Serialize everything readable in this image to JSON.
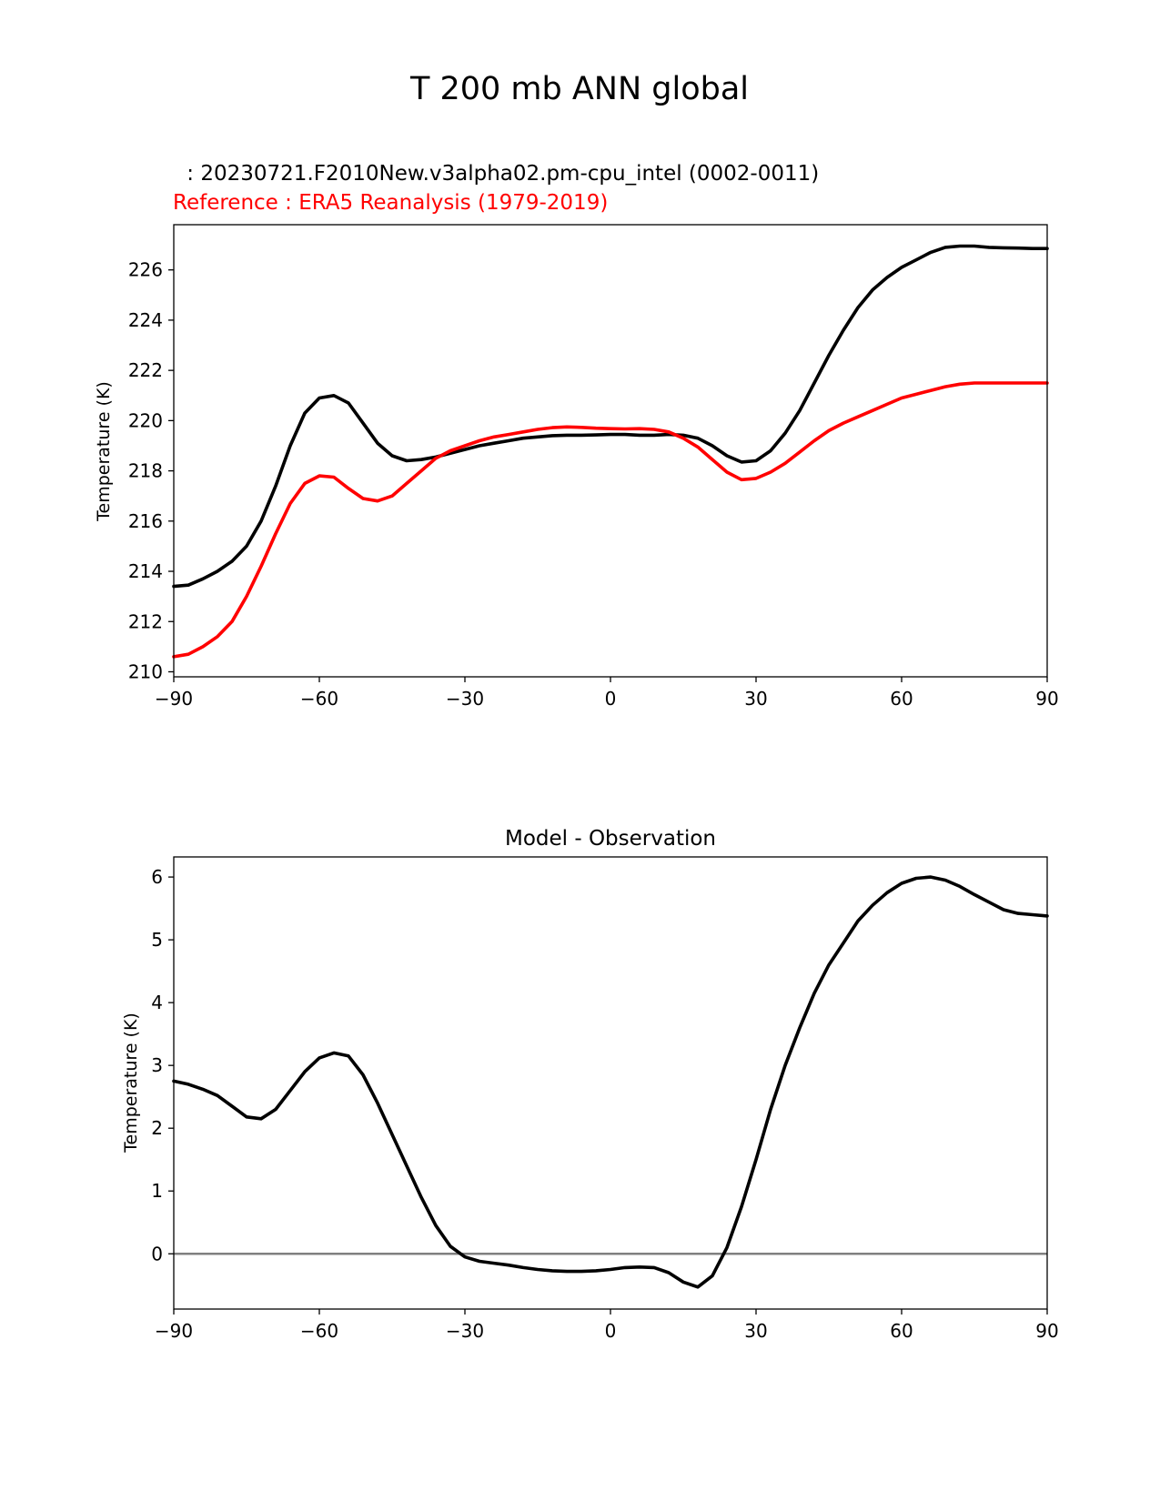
{
  "suptitle": "T 200 mb ANN global",
  "colors": {
    "test": "#000000",
    "reference": "#ff0000",
    "zero_line": "#808080"
  },
  "chart_data": [
    {
      "type": "line",
      "test_label": " : 20230721.F2010New.v3alpha02.pm-cpu_intel (0002-0011)",
      "ref_label": "Reference : ERA5 Reanalysis (1979-2019)",
      "xlabel": "",
      "ylabel": "Temperature (K)",
      "xlim": [
        -90,
        90
      ],
      "ylim": [
        209.8,
        227.8
      ],
      "xticks": [
        -90,
        -60,
        -30,
        0,
        30,
        60,
        90
      ],
      "xtick_labels": [
        "−90",
        "−60",
        "−30",
        "0",
        "30",
        "60",
        "90"
      ],
      "yticks": [
        210,
        212,
        214,
        216,
        218,
        220,
        222,
        224,
        226
      ],
      "ytick_labels": [
        "210",
        "212",
        "214",
        "216",
        "218",
        "220",
        "222",
        "224",
        "226"
      ],
      "series": [
        {
          "name": "Model",
          "color": "#000000",
          "x": [
            -90,
            -87,
            -84,
            -81,
            -78,
            -75,
            -72,
            -69,
            -66,
            -63,
            -60,
            -57,
            -54,
            -51,
            -48,
            -45,
            -42,
            -39,
            -36,
            -33,
            -30,
            -27,
            -24,
            -21,
            -18,
            -15,
            -12,
            -9,
            -6,
            -3,
            0,
            3,
            6,
            9,
            12,
            15,
            18,
            21,
            24,
            27,
            30,
            33,
            36,
            39,
            42,
            45,
            48,
            51,
            54,
            57,
            60,
            63,
            66,
            69,
            72,
            75,
            78,
            81,
            84,
            87,
            90
          ],
          "y": [
            213.4,
            213.45,
            213.7,
            214.0,
            214.4,
            215.0,
            216.0,
            217.4,
            219.0,
            220.3,
            220.9,
            221.0,
            220.7,
            219.9,
            219.1,
            218.6,
            218.4,
            218.45,
            218.55,
            218.7,
            218.85,
            219.0,
            219.1,
            219.2,
            219.3,
            219.35,
            219.4,
            219.42,
            219.42,
            219.43,
            219.45,
            219.45,
            219.42,
            219.42,
            219.45,
            219.42,
            219.3,
            219.0,
            218.6,
            218.35,
            218.4,
            218.8,
            219.5,
            220.4,
            221.5,
            222.6,
            223.6,
            224.5,
            225.2,
            225.7,
            226.1,
            226.4,
            226.7,
            226.9,
            226.95,
            226.95,
            226.9,
            226.88,
            226.87,
            226.85,
            226.85
          ]
        },
        {
          "name": "Reference",
          "color": "#ff0000",
          "x": [
            -90,
            -87,
            -84,
            -81,
            -78,
            -75,
            -72,
            -69,
            -66,
            -63,
            -60,
            -57,
            -54,
            -51,
            -48,
            -45,
            -42,
            -39,
            -36,
            -33,
            -30,
            -27,
            -24,
            -21,
            -18,
            -15,
            -12,
            -9,
            -6,
            -3,
            0,
            3,
            6,
            9,
            12,
            15,
            18,
            21,
            24,
            27,
            30,
            33,
            36,
            39,
            42,
            45,
            48,
            51,
            54,
            57,
            60,
            63,
            66,
            69,
            72,
            75,
            78,
            81,
            84,
            87,
            90
          ],
          "y": [
            210.6,
            210.7,
            211.0,
            211.4,
            212.0,
            213.0,
            214.2,
            215.5,
            216.7,
            217.5,
            217.8,
            217.75,
            217.3,
            216.9,
            216.8,
            217.0,
            217.5,
            218.0,
            218.5,
            218.8,
            219.0,
            219.2,
            219.35,
            219.45,
            219.55,
            219.65,
            219.72,
            219.75,
            219.73,
            219.7,
            219.68,
            219.67,
            219.68,
            219.65,
            219.55,
            219.3,
            218.95,
            218.45,
            217.95,
            217.65,
            217.7,
            217.95,
            218.3,
            218.75,
            219.2,
            219.6,
            219.9,
            220.15,
            220.4,
            220.65,
            220.9,
            221.05,
            221.2,
            221.35,
            221.45,
            221.5,
            221.5,
            221.5,
            221.5,
            221.5,
            221.5
          ]
        }
      ]
    },
    {
      "type": "line",
      "title": "Model - Observation",
      "xlabel": "",
      "ylabel": "Temperature (K)",
      "xlim": [
        -90,
        90
      ],
      "ylim": [
        -0.88,
        6.32
      ],
      "xticks": [
        -90,
        -60,
        -30,
        0,
        30,
        60,
        90
      ],
      "xtick_labels": [
        "−90",
        "−60",
        "−30",
        "0",
        "30",
        "60",
        "90"
      ],
      "yticks": [
        0,
        1,
        2,
        3,
        4,
        5,
        6
      ],
      "ytick_labels": [
        "0",
        "1",
        "2",
        "3",
        "4",
        "5",
        "6"
      ],
      "hline": 0,
      "series": [
        {
          "name": "Model - Observation",
          "color": "#000000",
          "x": [
            -90,
            -87,
            -84,
            -81,
            -78,
            -75,
            -72,
            -69,
            -66,
            -63,
            -60,
            -57,
            -54,
            -51,
            -48,
            -45,
            -42,
            -39,
            -36,
            -33,
            -30,
            -27,
            -24,
            -21,
            -18,
            -15,
            -12,
            -9,
            -6,
            -3,
            0,
            3,
            6,
            9,
            12,
            15,
            18,
            21,
            24,
            27,
            30,
            33,
            36,
            39,
            42,
            45,
            48,
            51,
            54,
            57,
            60,
            63,
            66,
            69,
            72,
            75,
            78,
            81,
            84,
            87,
            90
          ],
          "y": [
            2.75,
            2.7,
            2.62,
            2.52,
            2.35,
            2.18,
            2.15,
            2.3,
            2.6,
            2.9,
            3.12,
            3.2,
            3.15,
            2.85,
            2.4,
            1.9,
            1.4,
            0.9,
            0.45,
            0.12,
            -0.05,
            -0.12,
            -0.15,
            -0.18,
            -0.22,
            -0.25,
            -0.27,
            -0.28,
            -0.28,
            -0.27,
            -0.25,
            -0.22,
            -0.21,
            -0.22,
            -0.3,
            -0.45,
            -0.53,
            -0.35,
            0.1,
            0.75,
            1.5,
            2.3,
            3.0,
            3.6,
            4.15,
            4.6,
            4.95,
            5.3,
            5.55,
            5.75,
            5.9,
            5.98,
            6.0,
            5.95,
            5.85,
            5.72,
            5.6,
            5.48,
            5.42,
            5.4,
            5.38
          ]
        }
      ]
    }
  ]
}
